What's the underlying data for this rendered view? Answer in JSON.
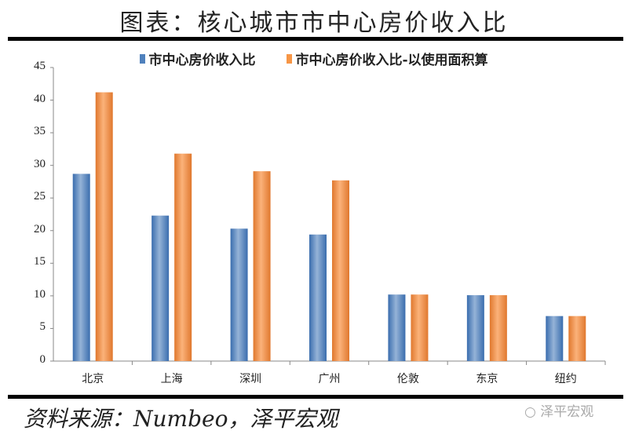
{
  "title": "图表：核心城市市中心房价收入比",
  "source": "资料来源：Numbeo，泽平宏观",
  "watermark": "泽平宏观",
  "watermark_icon": "wechat-icon",
  "colors": {
    "series1": "#4F81BD",
    "series2": "#F79646"
  },
  "chart_data": {
    "type": "bar",
    "title": "图表：核心城市市中心房价收入比",
    "xlabel": "",
    "ylabel": "",
    "ylim": [
      0,
      45
    ],
    "yticks": [
      0,
      5,
      10,
      15,
      20,
      25,
      30,
      35,
      40,
      45
    ],
    "grid": false,
    "legend_position": "top",
    "categories": [
      "北京",
      "上海",
      "深圳",
      "广州",
      "伦敦",
      "东京",
      "纽约"
    ],
    "series": [
      {
        "name": "市中心房价收入比",
        "values": [
          28.7,
          22.3,
          20.3,
          19.4,
          10.2,
          10.1,
          6.9
        ]
      },
      {
        "name": "市中心房价收入比-以使用面积算",
        "values": [
          41.2,
          31.8,
          29.1,
          27.7,
          10.2,
          10.1,
          6.9
        ]
      }
    ]
  }
}
